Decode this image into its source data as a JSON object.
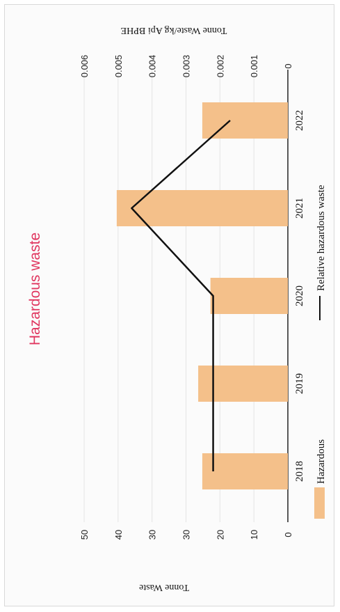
{
  "chart_data": {
    "type": "bar",
    "title": "Hazardous waste",
    "categories": [
      "2018",
      "2019",
      "2020",
      "2021",
      "2022"
    ],
    "series": [
      {
        "name": "Hazardous",
        "type": "bar",
        "axis": "left",
        "color": "#f4c08a",
        "values": [
          21,
          22,
          19,
          42,
          21
        ]
      },
      {
        "name": "Relative hazardous waste",
        "type": "line",
        "axis": "right",
        "color": "#111111",
        "values": [
          0.0022,
          0.0022,
          0.0022,
          0.0046,
          0.0017
        ]
      }
    ],
    "y_left": {
      "label": "Tonne Waste",
      "ticks": [
        "0",
        "10",
        "20",
        "30",
        "30",
        "40",
        "50"
      ],
      "range": [
        0,
        50
      ]
    },
    "y_right": {
      "label": "Tonne Waste/kg Api BPHE",
      "ticks": [
        "0",
        "0.001",
        "0.002",
        "0.003",
        "0.004",
        "0.005",
        "0.006"
      ],
      "range": [
        0,
        0.006
      ]
    },
    "grid": true,
    "legend": "bottom",
    "orientation": "rotated 90° clockwise"
  }
}
